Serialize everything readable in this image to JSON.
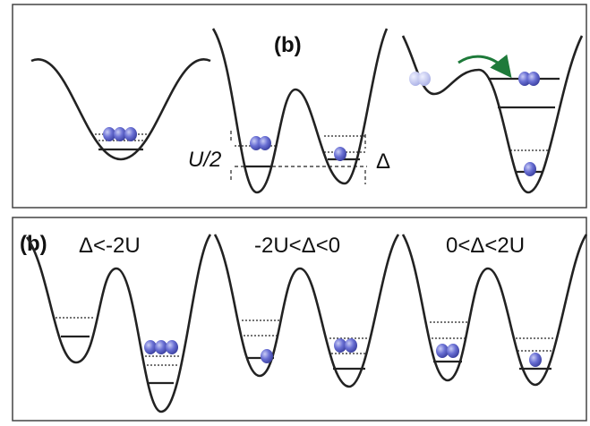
{
  "top_panel": {
    "label": "(b)",
    "u_half": "U/2",
    "delta": "Δ"
  },
  "bottom_panel": {
    "label": "(b)",
    "cases": [
      "Δ<-2U",
      "-2U<Δ<0",
      "0<Δ<2U"
    ]
  }
}
